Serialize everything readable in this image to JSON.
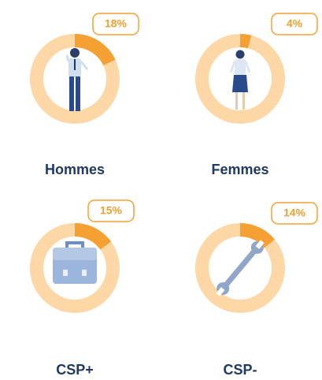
{
  "chart_data": [
    {
      "type": "donut",
      "label": "Hommes",
      "values": [
        18
      ],
      "value_labels": [
        "18%"
      ],
      "color": "#f5a033",
      "track_color": "#fdd8a6"
    },
    {
      "type": "donut",
      "label": "Femmes",
      "values": [
        4
      ],
      "value_labels": [
        "4%"
      ],
      "color": "#f5a033",
      "track_color": "#fdd8a6"
    },
    {
      "type": "donut",
      "label": "CSP+",
      "values": [
        15
      ],
      "value_labels": [
        "15%"
      ],
      "color": "#f5a033",
      "track_color": "#fdd8a6"
    },
    {
      "type": "donut",
      "label": "CSP-",
      "values": [
        14
      ],
      "value_labels": [
        "14%"
      ],
      "color": "#f5a033",
      "track_color": "#fdd8a6"
    }
  ]
}
